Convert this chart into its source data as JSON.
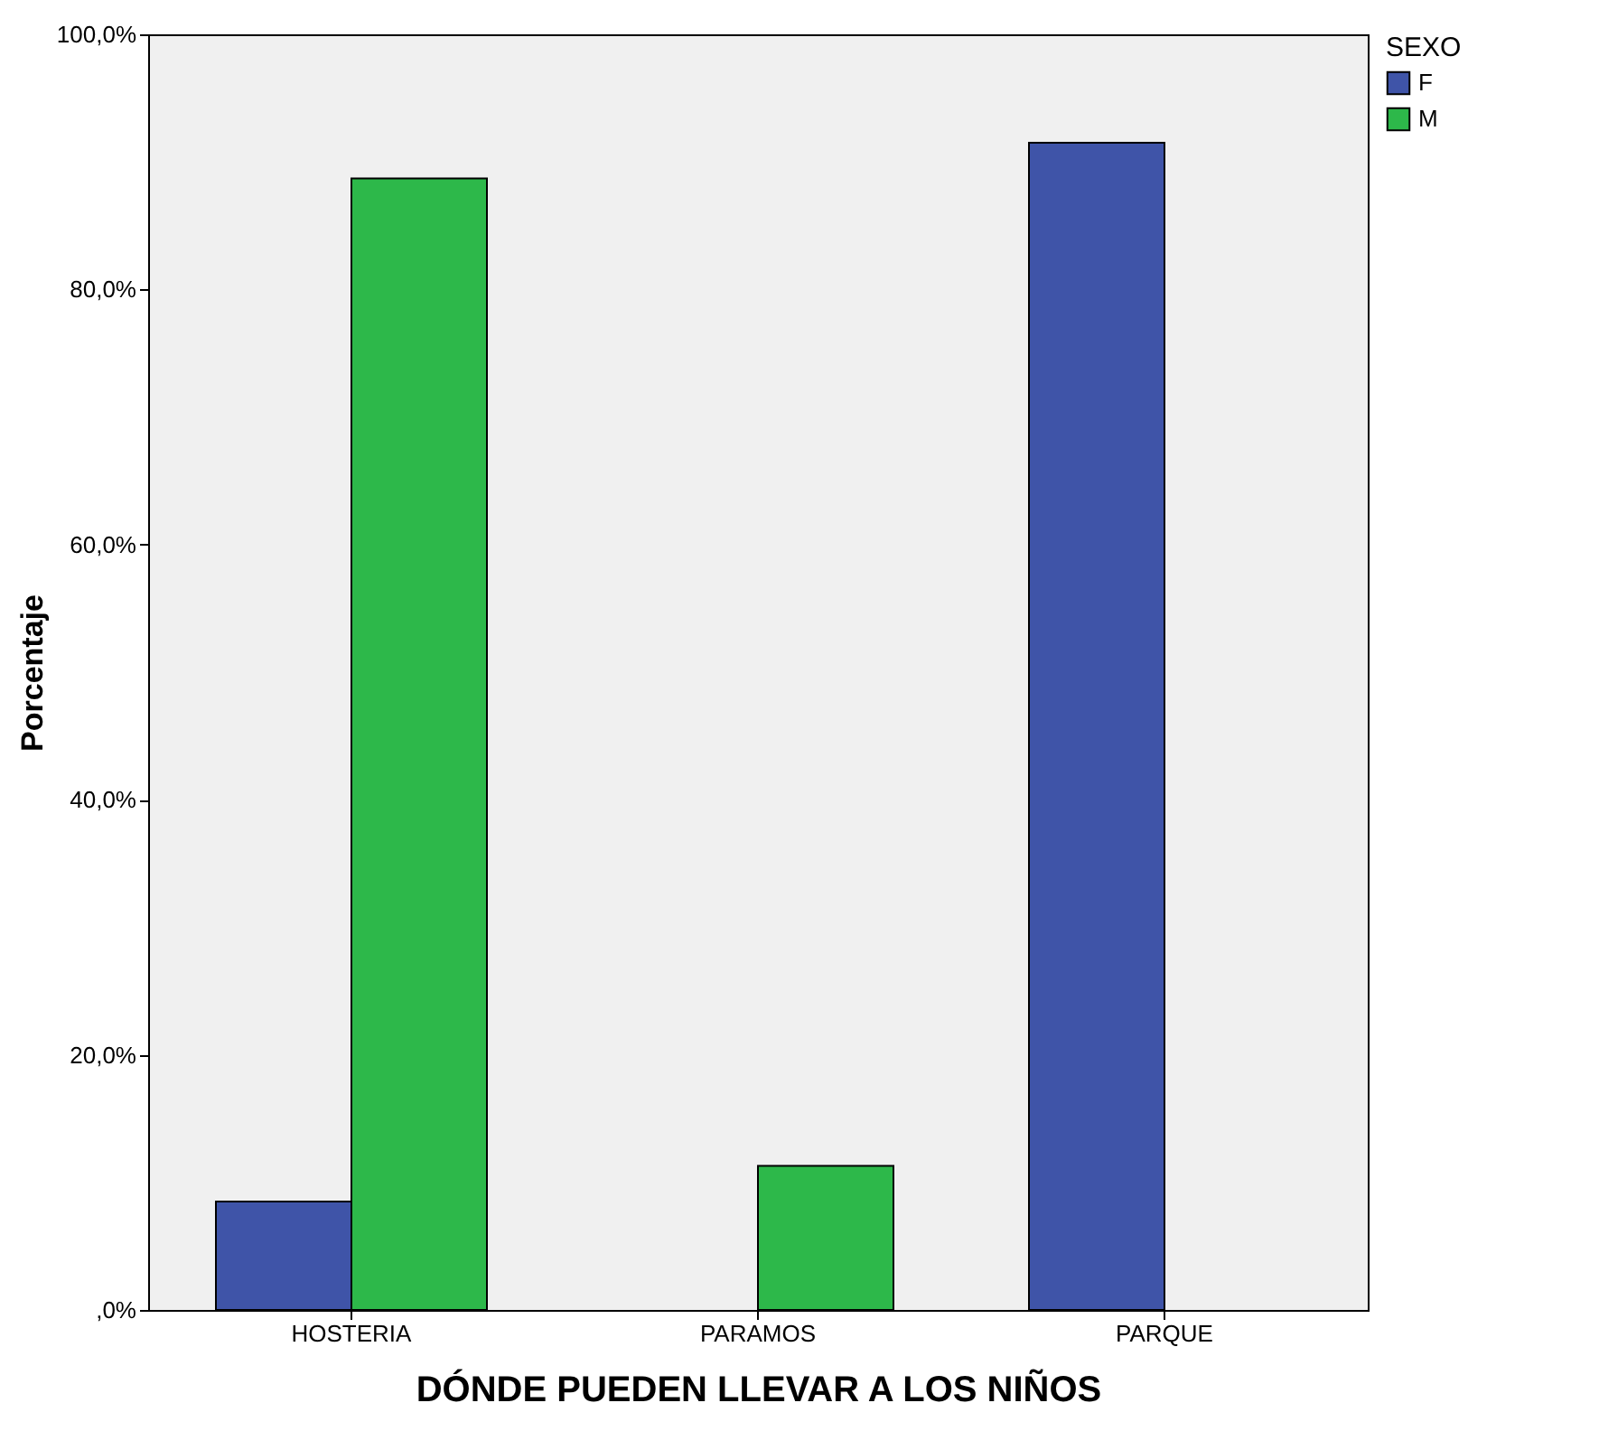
{
  "chart_data": {
    "type": "bar",
    "xlabel": "DÓNDE PUEDEN LLEVAR A LOS NIÑOS",
    "ylabel": "Porcentaje",
    "legend_title": "SEXO",
    "categories": [
      "HOSTERIA",
      "PARAMOS",
      "PARQUE"
    ],
    "series": [
      {
        "name": "F",
        "color": "#3f54a8",
        "values": [
          8.5,
          null,
          91.5
        ]
      },
      {
        "name": "M",
        "color": "#2db84a",
        "values": [
          88.7,
          11.3,
          null
        ]
      }
    ],
    "ylim": [
      0,
      100
    ],
    "yticks": [
      {
        "value": 0,
        "label": ",0%"
      },
      {
        "value": 20,
        "label": "20,0%"
      },
      {
        "value": 40,
        "label": "40,0%"
      },
      {
        "value": 60,
        "label": "60,0%"
      },
      {
        "value": 80,
        "label": "80,0%"
      },
      {
        "value": 100,
        "label": "100,0%"
      }
    ],
    "grid": false,
    "legend": "top right"
  }
}
